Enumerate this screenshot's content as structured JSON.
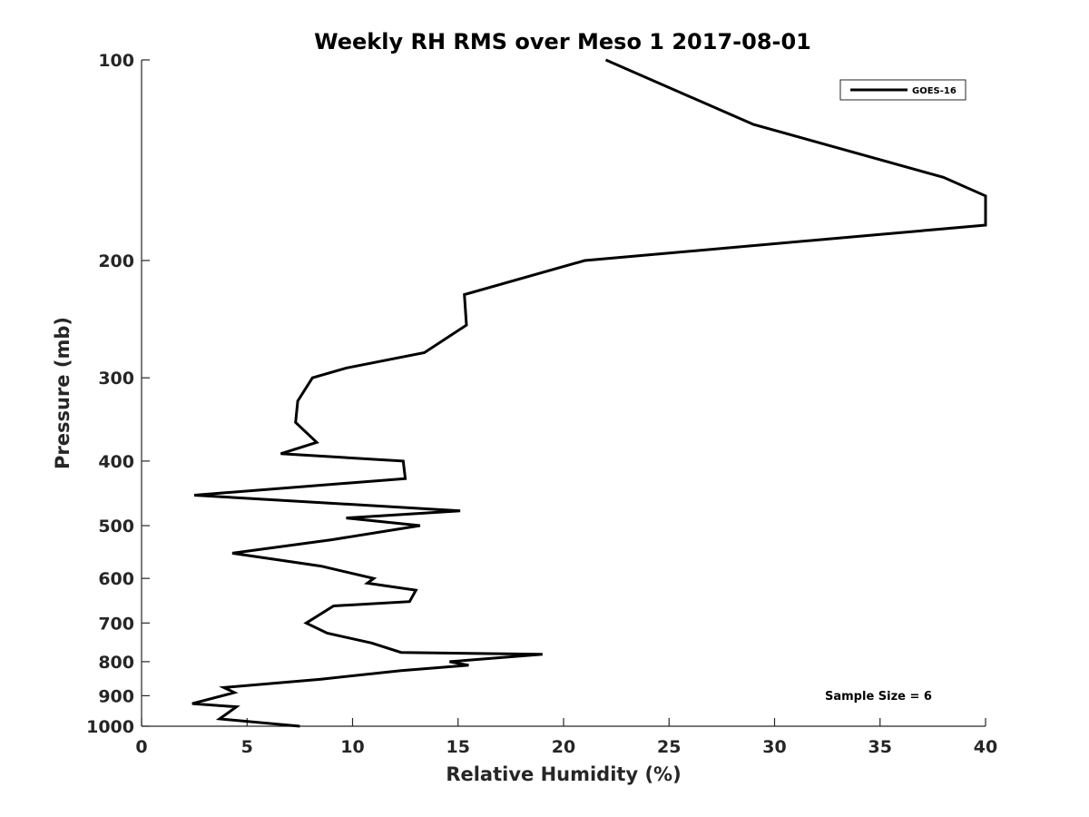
{
  "chart_data": {
    "type": "line",
    "title": "Weekly RH RMS over Meso 1 2017-08-01",
    "xlabel": "Relative Humidity (%)",
    "ylabel": "Pressure (mb)",
    "xlim": [
      0,
      40
    ],
    "ylim": [
      100,
      1000
    ],
    "yscale": "log",
    "yreversed": true,
    "grid": false,
    "legend_position": "top-right",
    "x_ticks": [
      "0",
      "5",
      "10",
      "15",
      "20",
      "25",
      "30",
      "35",
      "40"
    ],
    "x_tick_values": [
      0,
      5,
      10,
      15,
      20,
      25,
      30,
      35,
      40
    ],
    "y_ticks": [
      "100",
      "200",
      "300",
      "400",
      "500",
      "600",
      "700",
      "800",
      "900",
      "1000"
    ],
    "y_tick_values": [
      100,
      200,
      300,
      400,
      500,
      600,
      700,
      800,
      900,
      1000
    ],
    "annotation": "Sample Size = 6",
    "series": [
      {
        "name": "GOES-16",
        "color": "#000000",
        "points": [
          [
            22.0,
            100
          ],
          [
            29.0,
            125
          ],
          [
            38.0,
            150
          ],
          [
            40.0,
            160
          ],
          [
            40.0,
            177
          ],
          [
            21.0,
            200
          ],
          [
            15.3,
            225
          ],
          [
            15.4,
            250
          ],
          [
            13.4,
            275
          ],
          [
            9.7,
            290
          ],
          [
            8.1,
            300
          ],
          [
            7.4,
            325
          ],
          [
            7.3,
            350
          ],
          [
            8.3,
            375
          ],
          [
            6.6,
            390
          ],
          [
            12.4,
            400
          ],
          [
            12.5,
            425
          ],
          [
            2.5,
            450
          ],
          [
            15.1,
            475
          ],
          [
            9.7,
            487
          ],
          [
            13.2,
            500
          ],
          [
            9.0,
            525
          ],
          [
            4.3,
            550
          ],
          [
            8.5,
            575
          ],
          [
            11.0,
            600
          ],
          [
            10.7,
            610
          ],
          [
            13.0,
            625
          ],
          [
            12.7,
            650
          ],
          [
            9.1,
            660
          ],
          [
            7.8,
            700
          ],
          [
            8.8,
            725
          ],
          [
            10.9,
            750
          ],
          [
            12.3,
            775
          ],
          [
            19.0,
            780
          ],
          [
            14.6,
            800
          ],
          [
            15.5,
            810
          ],
          [
            12.3,
            825
          ],
          [
            8.5,
            850
          ],
          [
            3.9,
            875
          ],
          [
            4.4,
            890
          ],
          [
            2.4,
            925
          ],
          [
            4.5,
            935
          ],
          [
            3.7,
            975
          ],
          [
            7.5,
            1000
          ]
        ]
      }
    ]
  }
}
